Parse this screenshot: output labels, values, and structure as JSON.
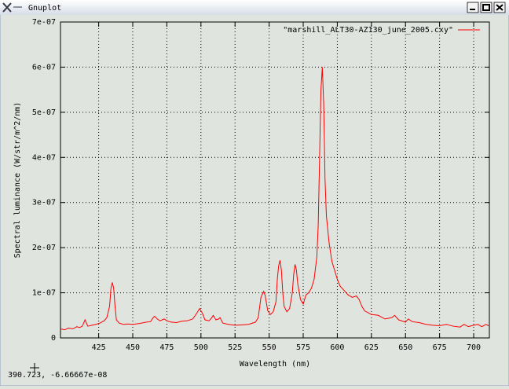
{
  "window": {
    "title": "Gnuplot"
  },
  "status_bar": {
    "text": "390.723, -6.66667e-08"
  },
  "chart_data": {
    "type": "line",
    "xlabel": "Wavelength (nm)",
    "ylabel": "Spectral luminance (W/str/m^2/nm)",
    "x": [
      397,
      400,
      403,
      406,
      409,
      411,
      413,
      415,
      417,
      420,
      423,
      426,
      429,
      431,
      433,
      434,
      435,
      436,
      437,
      438,
      440,
      443,
      446,
      450,
      455,
      460,
      463,
      465,
      466,
      468,
      470,
      473,
      475,
      478,
      482,
      486,
      490,
      494,
      497,
      499,
      501,
      503,
      506,
      508,
      509,
      511,
      513,
      514,
      516,
      520,
      525,
      530,
      535,
      540,
      542,
      544,
      546,
      547,
      549,
      551,
      553,
      555,
      556,
      557,
      558,
      559,
      560,
      561,
      563,
      565,
      567,
      568,
      569,
      570,
      571,
      573,
      575,
      577,
      579,
      581,
      583,
      585,
      586,
      587,
      588,
      589,
      590,
      591,
      592,
      594,
      596,
      598,
      600,
      602,
      605,
      608,
      611,
      614,
      616,
      618,
      620,
      625,
      630,
      635,
      640,
      642,
      645,
      650,
      652,
      655,
      660,
      665,
      670,
      675,
      680,
      685,
      690,
      693,
      696,
      700,
      703,
      706,
      709,
      711
    ],
    "series": [
      {
        "name": "\"marshill_ALT30-AZ130_june_2005.cxy\"",
        "color": "#ff0000",
        "values": [
          2e-08,
          1.8e-08,
          2.2e-08,
          2e-08,
          2.5e-08,
          2.3e-08,
          2.6e-08,
          4e-08,
          2.6e-08,
          2.8e-08,
          3e-08,
          3.3e-08,
          3.8e-08,
          4.5e-08,
          7e-08,
          1.1e-07,
          1.23e-07,
          1.1e-07,
          7e-08,
          4e-08,
          3.3e-08,
          3e-08,
          3.1e-08,
          3e-08,
          3.2e-08,
          3.5e-08,
          3.6e-08,
          4.5e-08,
          4.8e-08,
          4.2e-08,
          3.8e-08,
          4.2e-08,
          3.8e-08,
          3.5e-08,
          3.4e-08,
          3.7e-08,
          3.8e-08,
          4.2e-08,
          5.5e-08,
          6.5e-08,
          5.5e-08,
          4e-08,
          3.8e-08,
          4.5e-08,
          5e-08,
          4e-08,
          4.2e-08,
          4.5e-08,
          3.3e-08,
          3e-08,
          2.8e-08,
          2.9e-08,
          3e-08,
          3.5e-08,
          4.5e-08,
          9e-08,
          1.03e-07,
          9.5e-08,
          6e-08,
          5.2e-08,
          5.8e-08,
          8e-08,
          1.3e-07,
          1.6e-07,
          1.72e-07,
          1.5e-07,
          1e-07,
          7e-08,
          5.8e-08,
          6.5e-08,
          1e-07,
          1.4e-07,
          1.63e-07,
          1.5e-07,
          1.2e-07,
          8.5e-08,
          7.5e-08,
          9.5e-08,
          1e-07,
          1.1e-07,
          1.3e-07,
          1.8e-07,
          2.5e-07,
          4e-07,
          5.5e-07,
          6e-07,
          5.2e-07,
          3.5e-07,
          2.7e-07,
          2.1e-07,
          1.7e-07,
          1.5e-07,
          1.3e-07,
          1.15e-07,
          1.05e-07,
          9.5e-08,
          9e-08,
          9.3e-08,
          8.5e-08,
          7e-08,
          6e-08,
          5.2e-08,
          5e-08,
          4.2e-08,
          4.5e-08,
          5e-08,
          4e-08,
          3.5e-08,
          4.2e-08,
          3.6e-08,
          3.4e-08,
          3e-08,
          2.8e-08,
          2.7e-08,
          3e-08,
          2.6e-08,
          2.4e-08,
          3e-08,
          2.5e-08,
          2.8e-08,
          3e-08,
          2.5e-08,
          3e-08,
          2.7e-08
        ]
      }
    ],
    "xlim": [
      397,
      711.5
    ],
    "xticks": [
      425,
      450,
      475,
      500,
      525,
      550,
      575,
      600,
      625,
      650,
      675,
      700
    ],
    "ylim": [
      0,
      7e-07
    ],
    "yticks": [
      0,
      {
        "value": 1e-07,
        "label": "1e-07"
      },
      {
        "value": 2e-07,
        "label": "2e-07"
      },
      {
        "value": 3e-07,
        "label": "3e-07"
      },
      {
        "value": 4e-07,
        "label": "4e-07"
      },
      {
        "value": 5e-07,
        "label": "5e-07"
      },
      {
        "value": 6e-07,
        "label": "6e-07"
      },
      {
        "value": 7e-07,
        "label": "7e-07"
      }
    ],
    "grid": true,
    "legend": "top-right"
  }
}
